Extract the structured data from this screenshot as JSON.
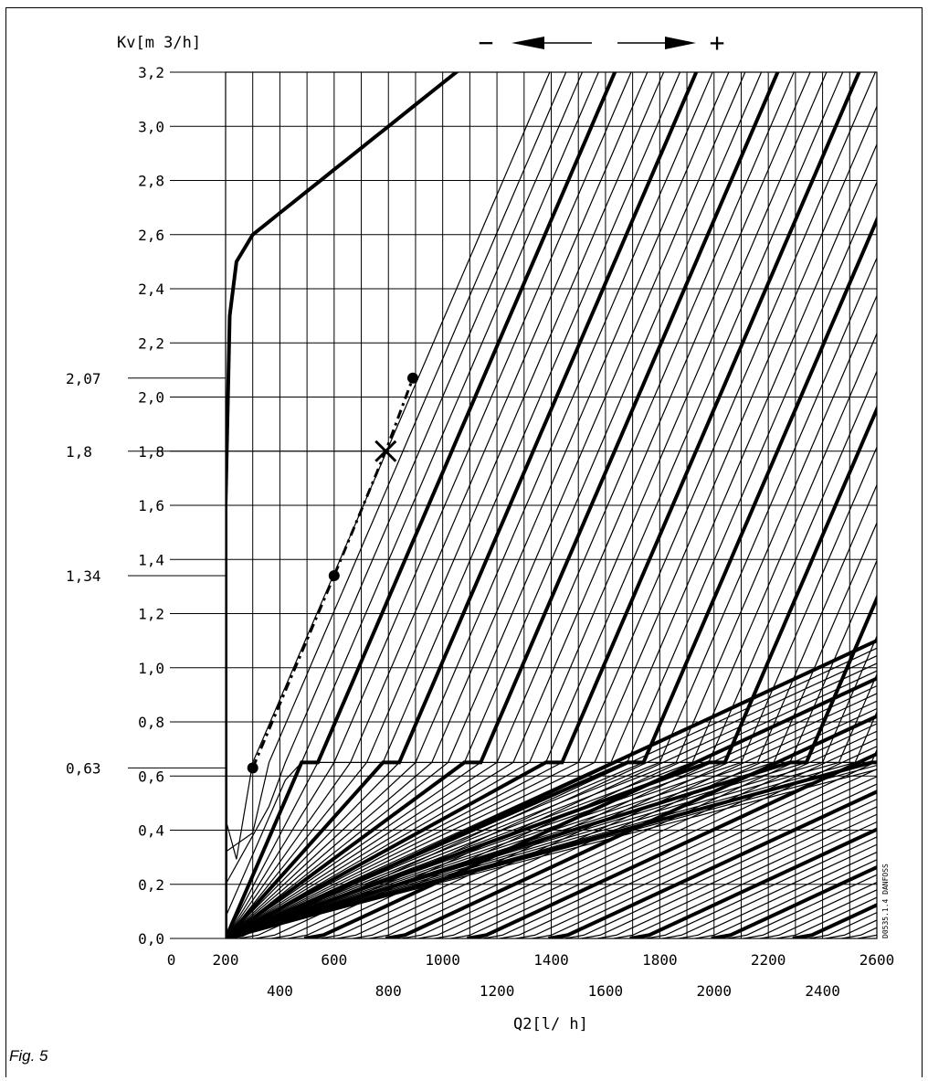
{
  "figure_label": "Fig. 5",
  "chart_data": {
    "type": "line",
    "title": "",
    "ylabel": "Kv[m 3/h]",
    "xlabel": "Q2[l/ h]",
    "xlim": [
      200,
      2600
    ],
    "ylim": [
      0.0,
      3.2
    ],
    "grid": true,
    "direction_indicator": {
      "minus": "−",
      "plus": "+"
    },
    "stamp_text": "D0535.1.4 DANFOSS",
    "y_ticks": [
      "0,0",
      "0,2",
      "0,4",
      "0,6",
      "0,8",
      "1,0",
      "1,2",
      "1,4",
      "1,6",
      "1,8",
      "2,0",
      "2,2",
      "2,4",
      "2,6",
      "2,8",
      "3,0",
      "3,2"
    ],
    "x_ticks_top_row": [
      "0",
      "200",
      "600",
      "1000",
      "1400",
      "1800",
      "2200",
      "2600"
    ],
    "x_ticks_bottom_row": [
      "400",
      "800",
      "1200",
      "1600",
      "2000",
      "2400"
    ],
    "x_tick_values_top_row": [
      0,
      200,
      600,
      1000,
      1400,
      1800,
      2200,
      2600
    ],
    "x_tick_values_bottom_row": [
      400,
      800,
      1200,
      1600,
      2000,
      2400
    ],
    "y_annotations": [
      {
        "label": "2,07",
        "value": 2.07
      },
      {
        "label": "1,8",
        "value": 1.8
      },
      {
        "label": "1,34",
        "value": 1.34
      },
      {
        "label": "0,63",
        "value": 0.63
      }
    ],
    "example_path": {
      "style": "dash-dot",
      "points": [
        {
          "x": 300,
          "y": 0.63,
          "marker": "dot"
        },
        {
          "x": 600,
          "y": 1.34,
          "marker": "dot"
        },
        {
          "x": 790,
          "y": 1.8,
          "marker": "cross"
        },
        {
          "x": 890,
          "y": 2.07,
          "marker": "dot"
        }
      ]
    },
    "curve_family": {
      "description": "family of valve characteristic lines; every 5th line bold",
      "steep_slope_kv_per_100lh": 0.233,
      "steep_knee_kv": 0.65,
      "shallow_slope_kv_per_100lh": 0.0465,
      "shallow_knee_kv": 0.012,
      "upper_offsets_lh": [
        0,
        60,
        120,
        180,
        240,
        300,
        360,
        420,
        480,
        540,
        600,
        660,
        720,
        780,
        840,
        900,
        960,
        1020,
        1080,
        1140,
        1200,
        1260,
        1320,
        1380,
        1440,
        1500,
        1560,
        1620,
        1680,
        1740,
        1800,
        1860,
        1920,
        1980,
        2040,
        2100,
        2160,
        2220,
        2280,
        2340,
        2400,
        2460,
        2520
      ],
      "bold_every": 5
    }
  }
}
